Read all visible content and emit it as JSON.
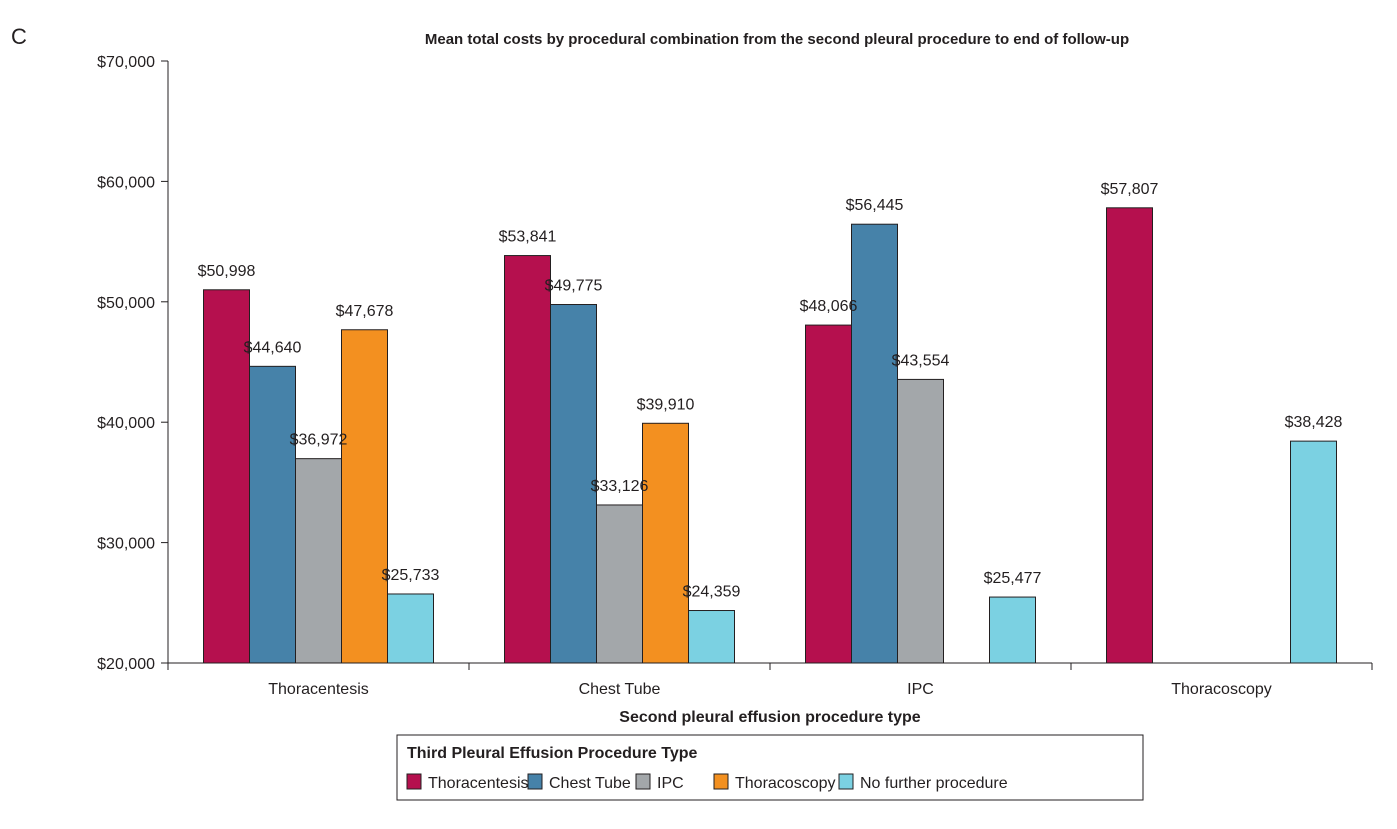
{
  "panel_label": "C",
  "chart_data": {
    "type": "bar",
    "title": "Mean total costs by procedural combination from the second pleural procedure to end of follow-up",
    "xlabel": "Second pleural effusion procedure type",
    "ylabel": "",
    "ylim": [
      20000,
      70000
    ],
    "yticks": [
      20000,
      30000,
      40000,
      50000,
      60000,
      70000
    ],
    "ytick_labels": [
      "$20,000",
      "$30,000",
      "$40,000",
      "$50,000",
      "$60,000",
      "$70,000"
    ],
    "grid": false,
    "categories": [
      "Thoracentesis",
      "Chest Tube",
      "IPC",
      "Thoracoscopy"
    ],
    "legend": {
      "title": "Third Pleural Effusion Procedure Type",
      "placement": "bottom-center"
    },
    "series": [
      {
        "name": "Thoracentesis",
        "color": "#b5104e",
        "values": [
          50998,
          53841,
          48066,
          57807
        ],
        "labels": [
          "$50,998",
          "$53,841",
          "$48,066",
          "$57,807"
        ]
      },
      {
        "name": "Chest Tube",
        "color": "#4682a9",
        "values": [
          44640,
          49775,
          56445,
          null
        ],
        "labels": [
          "$44,640",
          "$49,775",
          "$56,445",
          ""
        ]
      },
      {
        "name": "IPC",
        "color": "#a3a7aa",
        "values": [
          36972,
          33126,
          43554,
          null
        ],
        "labels": [
          "$36,972",
          "$33,126",
          "$43,554",
          ""
        ]
      },
      {
        "name": "Thoracoscopy",
        "color": "#f39020",
        "values": [
          47678,
          39910,
          null,
          null
        ],
        "labels": [
          "$47,678",
          "$39,910",
          "",
          ""
        ]
      },
      {
        "name": "No further procedure",
        "color": "#7bd1e2",
        "values": [
          25733,
          24359,
          25477,
          38428
        ],
        "labels": [
          "$25,733",
          "$24,359",
          "$25,477",
          "$38,428"
        ]
      }
    ]
  }
}
